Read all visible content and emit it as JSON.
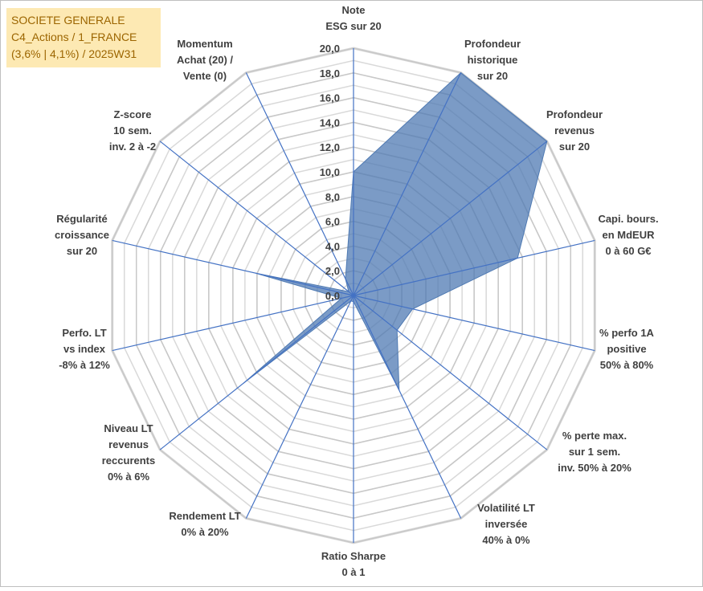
{
  "chart_data": {
    "type": "radar",
    "title": [
      "SOCIETE GENERALE",
      "C4_Actions / 1_FRANCE",
      "(3,6% | 4,1%) / 2025W31"
    ],
    "categories": [
      "Note\nESG sur 20",
      "Profondeur\nhistorique\nsur 20",
      "Profondeur\nrevenus\nsur 20",
      "Capi. bours.\nen MdEUR\n0 à 60 G€",
      "% perfo 1A\npositive\n50% à 80%",
      "% perte max.\nsur 1 sem.\ninv. 50% à 20%",
      "Volatilité LT\ninversée\n40% à 0%",
      "Ratio Sharpe\n0 à 1",
      "Rendement LT\n0% à 20%",
      "Niveau LT\nrevenus\nreccurents\n0% à 6%",
      "Perfo. LT\nvs index\n-8% à 12%",
      "Régularité\ncroissance\nsur 20",
      "Z-score\n10 sem.\ninv. 2 à -2",
      "Momentum\nAchat (20) /\nVente (0)"
    ],
    "values": [
      10,
      20,
      20,
      13.6,
      4.9,
      4.5,
      8.5,
      0.5,
      0.5,
      11.4,
      1,
      8.1,
      0.5,
      1.5
    ],
    "color": "#4f7ab3",
    "axis_color": "#4472c4",
    "ylim": [
      0,
      20
    ],
    "yticks": [
      {
        "value": 0,
        "label": "0,0"
      },
      {
        "value": 2,
        "label": "2,0"
      },
      {
        "value": 4,
        "label": "4,0"
      },
      {
        "value": 6,
        "label": "6,0"
      },
      {
        "value": 8,
        "label": "8,0"
      },
      {
        "value": 10,
        "label": "10,0"
      },
      {
        "value": 12,
        "label": "12,0"
      },
      {
        "value": 14,
        "label": "14,0"
      },
      {
        "value": 16,
        "label": "16,0"
      },
      {
        "value": 18,
        "label": "18,0"
      },
      {
        "value": 20,
        "label": "20,0"
      }
    ],
    "grid": true
  }
}
